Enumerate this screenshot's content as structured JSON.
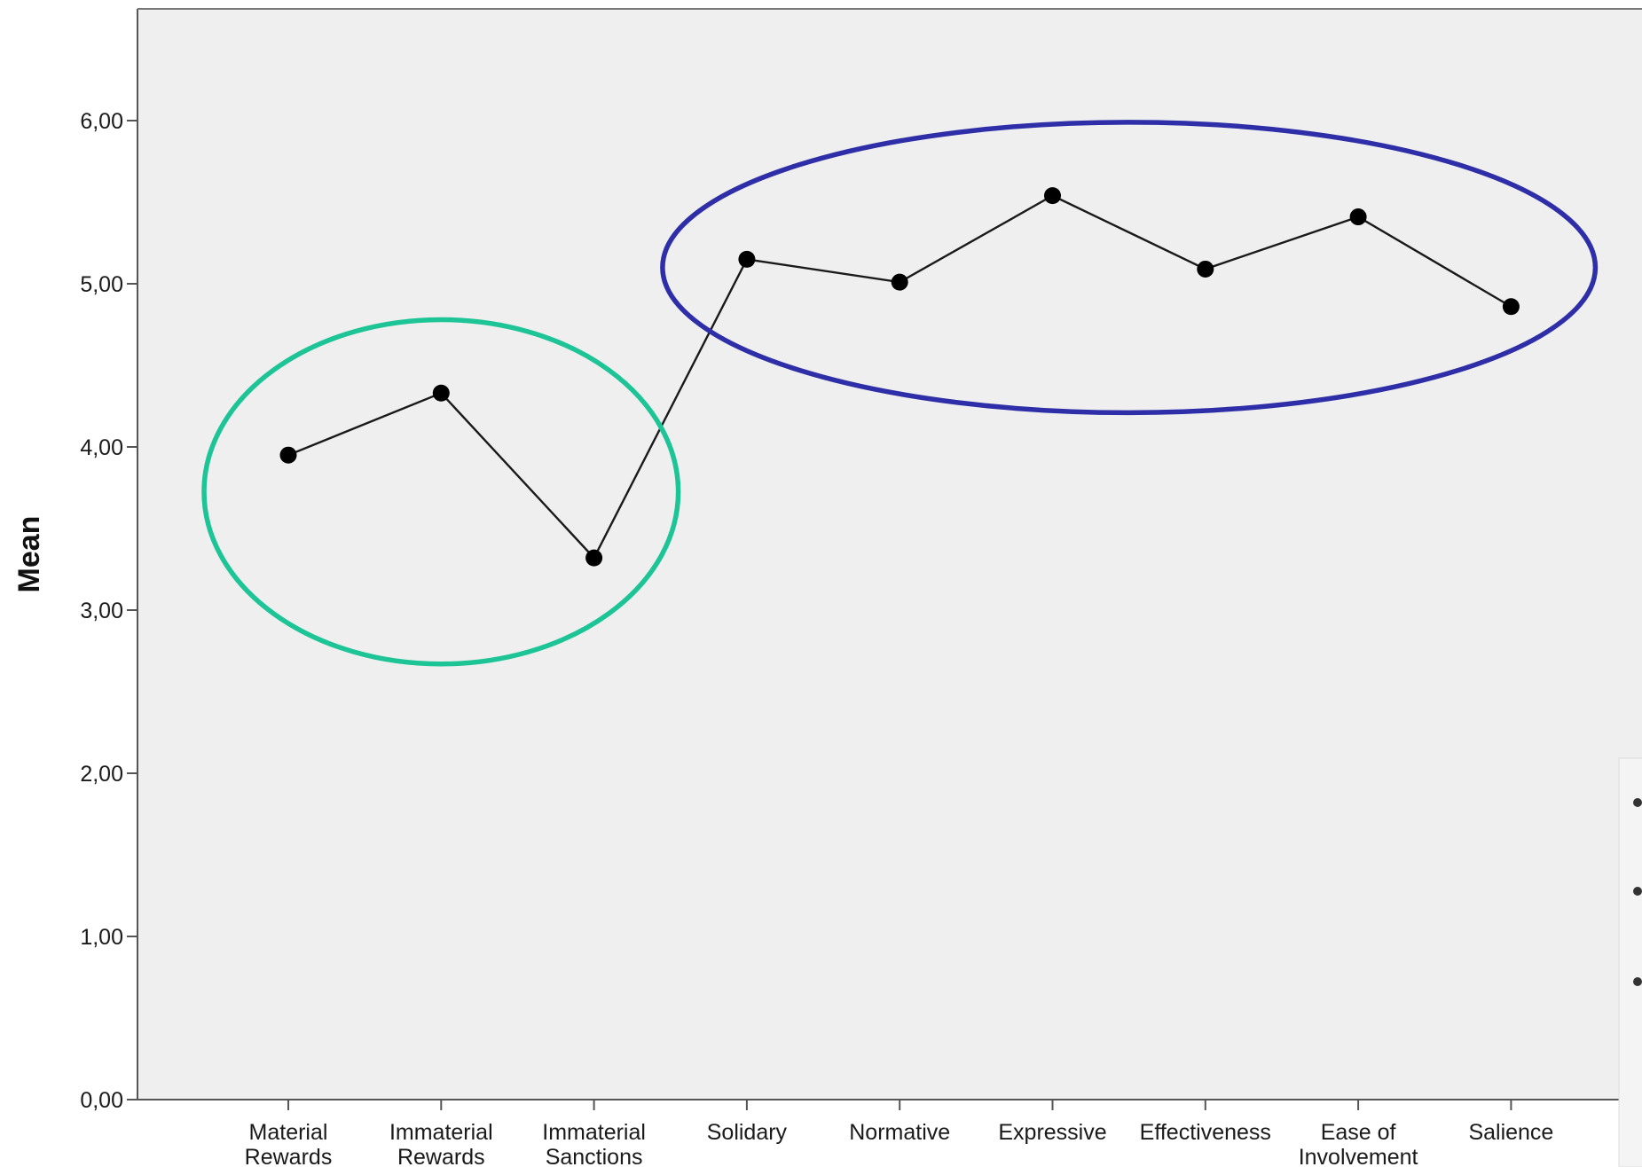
{
  "chart_data": {
    "type": "line",
    "title": "",
    "xlabel": "",
    "ylabel": "Mean",
    "ylim": [
      0,
      6.5
    ],
    "yticks": [
      "0,00",
      "1,00",
      "2,00",
      "3,00",
      "4,00",
      "5,00",
      "6,00"
    ],
    "categories": [
      [
        "Material",
        "Rewards"
      ],
      [
        "Immaterial",
        "Rewards"
      ],
      [
        "Immaterial",
        "Sanctions"
      ],
      [
        "Solidary"
      ],
      [
        "Normative"
      ],
      [
        "Expressive"
      ],
      [
        "Effectiveness"
      ],
      [
        "Ease of",
        "Involvement"
      ],
      [
        "Salience"
      ]
    ],
    "series": [
      {
        "values": [
          3.95,
          4.33,
          3.32,
          5.15,
          5.01,
          5.54,
          5.09,
          5.41,
          4.86
        ]
      }
    ],
    "grid": false,
    "annotations": [
      {
        "shape": "ellipse",
        "color": "#1DC496",
        "encloses": [
          "Material Rewards",
          "Immaterial Rewards",
          "Immaterial Sanctions"
        ]
      },
      {
        "shape": "ellipse",
        "color": "#2E2FA8",
        "encloses": [
          "Solidary",
          "Normative",
          "Expressive",
          "Effectiveness",
          "Ease of Involvement",
          "Salience"
        ]
      }
    ],
    "colors": {
      "plot_background": "#EFEFEF",
      "line": "#1a1a1a",
      "marker": "#000000"
    }
  }
}
